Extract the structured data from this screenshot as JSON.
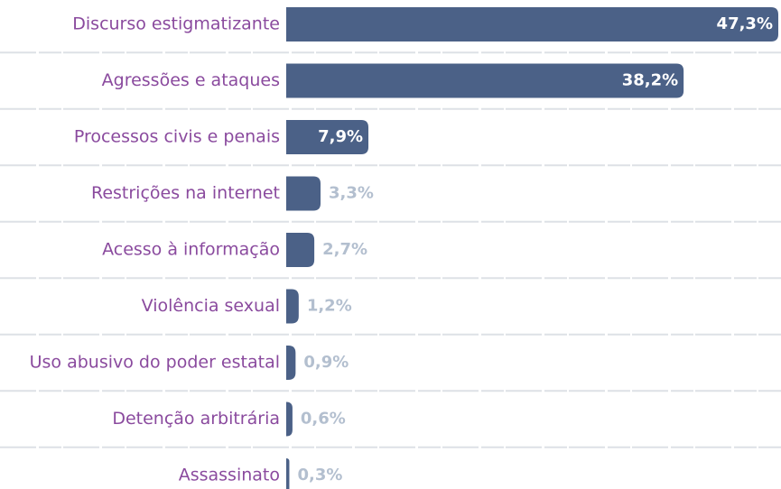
{
  "chart_data": {
    "type": "bar",
    "orientation": "horizontal",
    "categories": [
      "Discurso estigmatizante",
      "Agressões e ataques",
      "Processos civis e penais",
      "Restrições na internet",
      "Acesso à informação",
      "Violência sexual",
      "Uso abusivo do poder estatal",
      "Detenção arbitrária",
      "Assassinato"
    ],
    "values": [
      47.3,
      38.2,
      7.9,
      3.3,
      2.7,
      1.2,
      0.9,
      0.6,
      0.3
    ],
    "value_labels": [
      "47,3%",
      "38,2%",
      "7,9%",
      "3,3%",
      "2,7%",
      "1,2%",
      "0,9%",
      "0,6%",
      "0,3%"
    ],
    "color": "#4b6187"
  }
}
